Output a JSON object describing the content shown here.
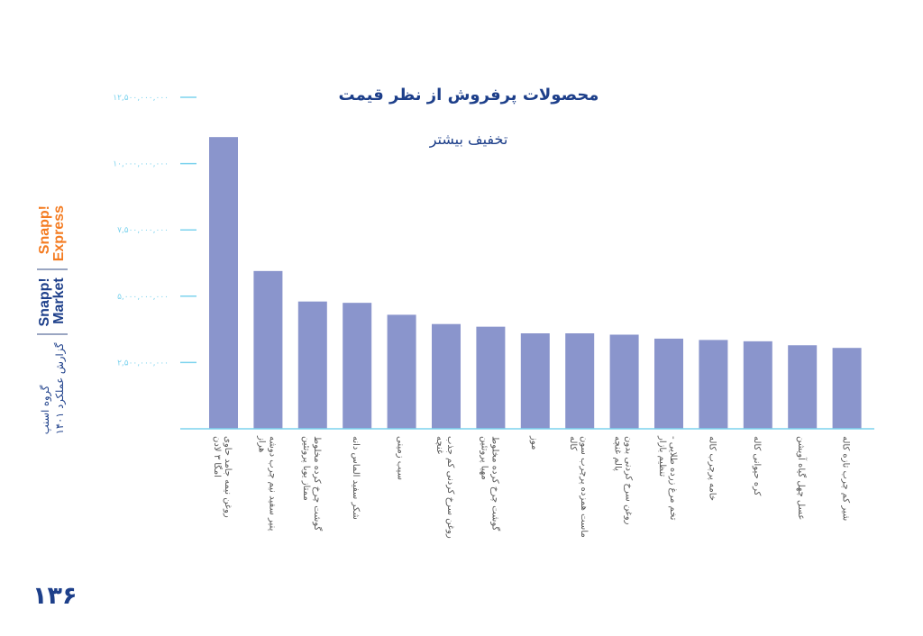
{
  "brand": {
    "logo_market_line1": "Snapp!",
    "logo_market_line2": "Market",
    "logo_express_line1": "Snapp!",
    "logo_express_line2": "Express",
    "group_name": "گروه اسنپ",
    "report_name": "گزارش عملکرد ۱۴۰۱"
  },
  "page_number": "۱۳۶",
  "colors": {
    "bar": "#8a95cc",
    "title": "#1d3f8a",
    "axis_tick": "#7dd3ee",
    "label": "#555555",
    "express_orange": "#f47b20"
  },
  "chart_data": {
    "type": "bar",
    "title": "محصولات پرفروش از نظر قیمت",
    "subtitle": "تخفیف بیشتر",
    "ylim": [
      0,
      12500000000
    ],
    "y_ticks": [
      2500000000,
      5000000000,
      7500000000,
      10000000000,
      12500000000
    ],
    "y_tick_labels": [
      "۲,۵۰۰,۰۰۰,۰۰۰",
      "۵,۰۰۰,۰۰۰,۰۰۰",
      "۷,۵۰۰,۰۰۰,۰۰۰",
      "۱۰,۰۰۰,۰۰۰,۰۰۰",
      "۱۲,۵۰۰,۰۰۰,۰۰۰"
    ],
    "categories": [
      "روغن نیمه جامد حاوی امگا ۳ لادن",
      "پنیر سفید نیم چرب دوشه هراز",
      "گوشت چرخ کرده مخلوط ممتاز یوبا پروتئین",
      "شکر سفید الماس دانه",
      "سیب زمینی",
      "روغن سرخ کردنی کم جذب غنچه",
      "گوشت چرخ کرده مخلوط مهیا پروتئین",
      "موز",
      "ماست همزده پرچرب سون کاله",
      "روغن سرخ کردنی بدون پالم غنچه",
      "تخم مرغ زرده طلایی - تنظیم بازار",
      "خامه پرچرب کاله",
      "کره حیوانی کاله",
      "عسل چهل گیاه آویشن",
      "شیر کم چرب تازه کاله"
    ],
    "values": [
      11000000000,
      5950000000,
      4800000000,
      4750000000,
      4300000000,
      3950000000,
      3850000000,
      3600000000,
      3600000000,
      3550000000,
      3400000000,
      3350000000,
      3300000000,
      3150000000,
      3050000000
    ],
    "grid": false
  }
}
